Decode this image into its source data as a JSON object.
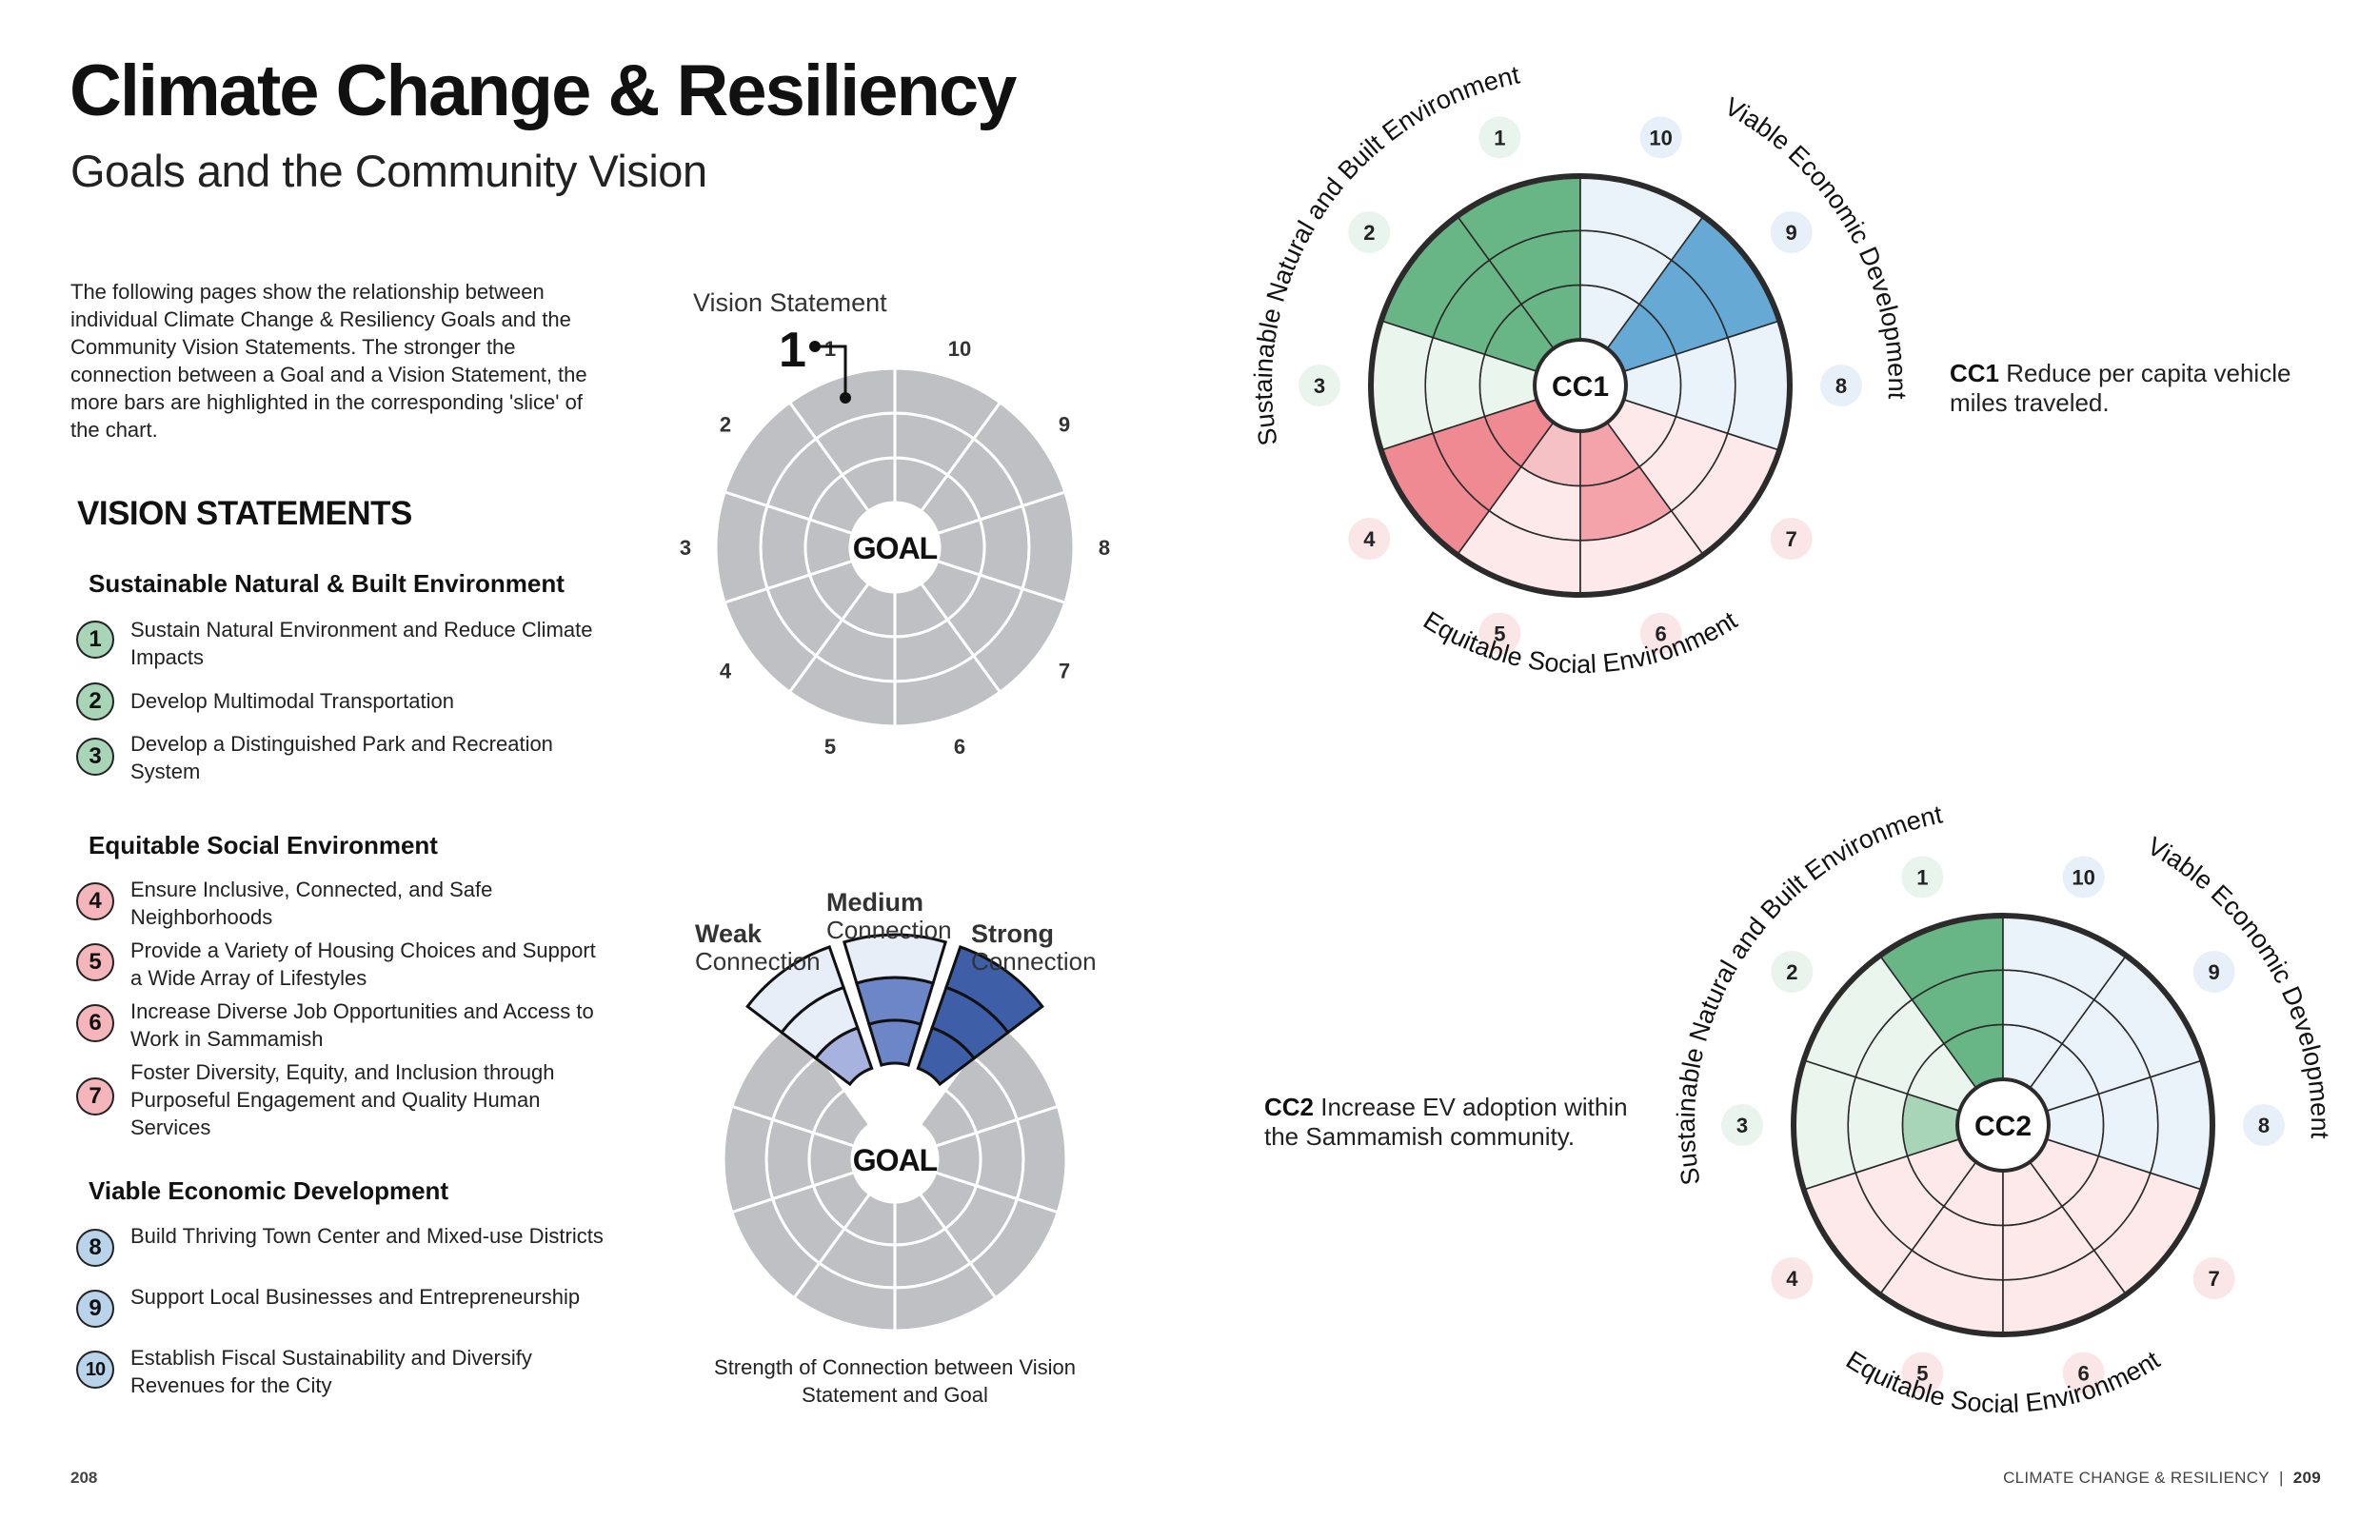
{
  "header": {
    "title": "Climate Change & Resiliency",
    "subtitle": "Goals and the Community Vision"
  },
  "intro": "The following pages show the relationship between individual Climate Change & Resiliency Goals and the Community Vision Statements. The stronger the connection between a Goal and a Vision Statement, the more bars are highlighted in the corresponding 'slice' of the chart.",
  "vision": {
    "heading": "VISION STATEMENTS",
    "categories": [
      {
        "name": "Sustainable Natural & Built Environment",
        "color": "#a8d5b5",
        "items": [
          {
            "num": "1",
            "text": "Sustain Natural Environment and Reduce Climate Impacts"
          },
          {
            "num": "2",
            "text": "Develop Multimodal Transportation"
          },
          {
            "num": "3",
            "text": "Develop a Distinguished Park and Recreation System"
          }
        ]
      },
      {
        "name": "Equitable Social Environment",
        "color": "#f4b6ba",
        "items": [
          {
            "num": "4",
            "text": "Ensure Inclusive, Connected, and Safe Neighborhoods"
          },
          {
            "num": "5",
            "text": "Provide a Variety of Housing Choices and Support a Wide Array of Lifestyles"
          },
          {
            "num": "6",
            "text": "Increase Diverse Job Opportunities and Access to Work in Sammamish"
          },
          {
            "num": "7",
            "text": "Foster Diversity, Equity, and Inclusion through Purposeful Engagement and Quality Human Services"
          }
        ]
      },
      {
        "name": "Viable Economic Development",
        "color": "#b9d4ea",
        "items": [
          {
            "num": "8",
            "text": "Build Thriving Town Center and Mixed-use Districts"
          },
          {
            "num": "9",
            "text": "Support Local Businesses and Entrepreneurship"
          },
          {
            "num": "10",
            "text": "Establish Fiscal Sustainability and Diversify Revenues for the City"
          }
        ]
      }
    ]
  },
  "legend": {
    "vision_statement_label": "Vision Statement",
    "vision_statement_num": "1",
    "goal_label": "GOAL",
    "weak": {
      "title": "Weak",
      "sub": "Connection"
    },
    "medium": {
      "title": "Medium",
      "sub": "Connection"
    },
    "strong": {
      "title": "Strong",
      "sub": "Connection"
    },
    "caption": "Strength of Connection between Vision Statement and Goal"
  },
  "arc_labels": {
    "sustainable": "Sustainable Natural and Built Environment",
    "viable": "Viable Economic Development",
    "equitable": "Equitable Social Environment"
  },
  "goals": [
    {
      "id": "CC1",
      "text": "Reduce per capita vehicle miles traveled.",
      "strengths": [
        3,
        3,
        0,
        3,
        1,
        2,
        0,
        0,
        3,
        0
      ]
    },
    {
      "id": "CC2",
      "text": "Increase EV adoption within the Sammamish community.",
      "strengths": [
        3,
        0,
        1,
        0,
        0,
        0,
        0,
        0,
        0,
        0
      ]
    }
  ],
  "colors": {
    "green": [
      "#a8d5b7",
      "#86c49c",
      "#68b585"
    ],
    "green_bg": "#eaf5ee",
    "red": [
      "#f6c1c5",
      "#f3a3a9",
      "#ef8a92"
    ],
    "red_bg": "#fde9ea",
    "blue": [
      "#b3d3ea",
      "#8dbfe0",
      "#65a9d4"
    ],
    "blue_bg": "#eaf2fa",
    "legend_blue": [
      "#a7b3de",
      "#6c86c8",
      "#3e5ea8"
    ],
    "legend_bg": "#e8eef8",
    "grey": "#bfc0c3"
  },
  "footer": {
    "left_page": "208",
    "right_label": "CLIMATE CHANGE & RESILIENCY",
    "separator": "|",
    "right_page": "209"
  }
}
